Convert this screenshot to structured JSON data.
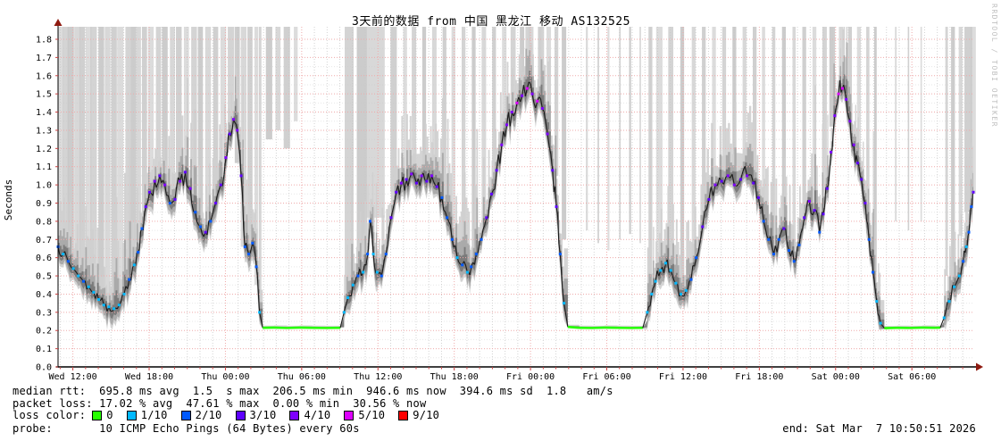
{
  "title": "3天前的数据 from 中国 黑龙江 移动 AS132525",
  "watermark": "RRDTOOL / TOBI OETIKER",
  "footer": {
    "median_line": "median rtt:  695.8 ms avg  1.5  s max  206.5 ms min  946.6 ms now  394.6 ms sd  1.8   am/s",
    "loss_line": "packet loss: 17.02 % avg  47.61 % max  0.00 % min  30.56 % now",
    "legend_label": "loss color:",
    "probe_line": "probe:       10 ICMP Echo Pings (64 Bytes) every 60s",
    "end_text": "end: Sat Mar  7 10:50:51 2026"
  },
  "chart_data": {
    "type": "line",
    "title": "3天前的数据 from 中国 黑龙江 移动 AS132525",
    "ylabel": "Seconds",
    "ylim": [
      0.0,
      1.8
    ],
    "y_tick_step": 0.1,
    "grid": true,
    "x_unit": "hours from graph start (Wed ~10:50) to end (Sat 10:50:51)",
    "x_span_hours": 72,
    "x_first_major_offset_hours": 1.1667,
    "x_major_step_hours": 6,
    "x_tick_labels": [
      "Wed 12:00",
      "Wed 18:00",
      "Thu 00:00",
      "Thu 06:00",
      "Thu 12:00",
      "Thu 18:00",
      "Fri 00:00",
      "Fri 06:00",
      "Fri 12:00",
      "Fri 18:00",
      "Sat 00:00",
      "Sat 06:00"
    ],
    "loss_legend": [
      {
        "label": "0",
        "color": "#26ff00",
        "level": 0
      },
      {
        "label": "1/10",
        "color": "#00b8ff",
        "level": 1
      },
      {
        "label": "2/10",
        "color": "#0059ff",
        "level": 2
      },
      {
        "label": "3/10",
        "color": "#5e00ff",
        "level": 3
      },
      {
        "label": "4/10",
        "color": "#7e00ff",
        "level": 4
      },
      {
        "label": "5/10",
        "color": "#dd00ff",
        "level": 5
      },
      {
        "label": "9/10",
        "color": "#ff0000",
        "level": 9
      }
    ],
    "stats": {
      "median_rtt": {
        "avg": "695.8 ms",
        "max": "1.5 s",
        "min": "206.5 ms",
        "now": "946.6 ms",
        "sd": "394.6 ms",
        "am_s": "1.8"
      },
      "packet_loss": {
        "avg": "17.02 %",
        "max": "47.61 %",
        "min": "0.00 %",
        "now": "30.56 %"
      },
      "probe": "10 ICMP Echo Pings (64 Bytes) every 60s",
      "end": "Sat Mar  7 10:50:51 2026"
    },
    "median_points": [
      [
        0,
        0.66,
        2
      ],
      [
        0.4,
        0.62,
        1
      ],
      [
        0.8,
        0.58,
        2
      ],
      [
        1.2,
        0.54,
        1
      ],
      [
        1.6,
        0.5,
        1
      ],
      [
        2.0,
        0.47,
        2
      ],
      [
        2.4,
        0.44,
        1
      ],
      [
        2.8,
        0.41,
        1
      ],
      [
        3.2,
        0.37,
        1
      ],
      [
        3.6,
        0.34,
        1
      ],
      [
        4.0,
        0.33,
        1
      ],
      [
        4.4,
        0.32,
        1
      ],
      [
        4.8,
        0.34,
        1
      ],
      [
        5.2,
        0.4,
        1
      ],
      [
        5.6,
        0.48,
        2
      ],
      [
        6.0,
        0.56,
        1
      ],
      [
        6.3,
        0.63,
        2
      ],
      [
        6.6,
        0.76,
        2
      ],
      [
        6.9,
        0.88,
        3
      ],
      [
        7.2,
        0.96,
        3
      ],
      [
        7.6,
        1.02,
        4
      ],
      [
        8.0,
        1.05,
        3
      ],
      [
        8.4,
        1.0,
        4
      ],
      [
        8.8,
        0.9,
        2
      ],
      [
        9.2,
        0.92,
        3
      ],
      [
        9.6,
        1.02,
        4
      ],
      [
        10.0,
        1.07,
        3
      ],
      [
        10.4,
        0.98,
        4
      ],
      [
        10.8,
        0.85,
        2
      ],
      [
        11.2,
        0.77,
        2
      ],
      [
        11.6,
        0.74,
        3
      ],
      [
        12.0,
        0.8,
        2
      ],
      [
        12.4,
        0.9,
        3
      ],
      [
        12.8,
        1.0,
        3
      ],
      [
        13.2,
        1.15,
        4
      ],
      [
        13.5,
        1.28,
        3
      ],
      [
        13.8,
        1.36,
        4
      ],
      [
        14.1,
        1.3,
        4
      ],
      [
        14.4,
        1.05,
        3
      ],
      [
        14.7,
        0.66,
        2
      ],
      [
        15.0,
        0.62,
        2
      ],
      [
        15.3,
        0.68,
        2
      ],
      [
        15.6,
        0.55,
        2
      ],
      [
        15.85,
        0.3,
        1
      ],
      [
        16.1,
        0.215,
        0
      ],
      [
        17.0,
        0.216,
        0
      ],
      [
        18.0,
        0.214,
        0
      ],
      [
        19.0,
        0.216,
        0
      ],
      [
        20.0,
        0.215,
        0
      ],
      [
        21.0,
        0.214,
        0
      ],
      [
        22.2,
        0.215,
        0
      ],
      [
        22.5,
        0.3,
        1
      ],
      [
        22.8,
        0.38,
        1
      ],
      [
        23.2,
        0.45,
        1
      ],
      [
        23.6,
        0.5,
        2
      ],
      [
        24.0,
        0.52,
        1
      ],
      [
        24.35,
        0.62,
        2
      ],
      [
        24.55,
        0.8,
        2
      ],
      [
        24.8,
        0.62,
        1
      ],
      [
        25.1,
        0.52,
        1
      ],
      [
        25.45,
        0.5,
        2
      ],
      [
        25.8,
        0.62,
        2
      ],
      [
        26.2,
        0.82,
        3
      ],
      [
        26.6,
        0.96,
        3
      ],
      [
        27.0,
        1.01,
        4
      ],
      [
        27.4,
        1.03,
        3
      ],
      [
        27.8,
        1.06,
        4
      ],
      [
        28.2,
        1.01,
        3
      ],
      [
        28.6,
        1.05,
        4
      ],
      [
        29.0,
        1.02,
        3
      ],
      [
        29.4,
        1.05,
        4
      ],
      [
        29.8,
        0.99,
        3
      ],
      [
        30.2,
        0.93,
        2
      ],
      [
        30.6,
        0.82,
        2
      ],
      [
        31.0,
        0.7,
        2
      ],
      [
        31.4,
        0.6,
        1
      ],
      [
        31.8,
        0.56,
        2
      ],
      [
        32.2,
        0.52,
        1
      ],
      [
        32.5,
        0.55,
        2
      ],
      [
        32.9,
        0.62,
        2
      ],
      [
        33.3,
        0.7,
        2
      ],
      [
        33.7,
        0.82,
        3
      ],
      [
        34.1,
        0.95,
        3
      ],
      [
        34.5,
        1.08,
        3
      ],
      [
        34.9,
        1.22,
        4
      ],
      [
        35.3,
        1.33,
        4
      ],
      [
        35.7,
        1.4,
        4
      ],
      [
        36.1,
        1.45,
        5
      ],
      [
        36.5,
        1.49,
        4
      ],
      [
        36.9,
        1.53,
        5
      ],
      [
        37.3,
        1.5,
        4
      ],
      [
        37.7,
        1.46,
        5
      ],
      [
        38.1,
        1.42,
        4
      ],
      [
        38.5,
        1.28,
        4
      ],
      [
        38.9,
        1.08,
        3
      ],
      [
        39.2,
        0.88,
        3
      ],
      [
        39.5,
        0.62,
        2
      ],
      [
        39.8,
        0.35,
        1
      ],
      [
        40.1,
        0.22,
        0
      ],
      [
        41.0,
        0.215,
        0
      ],
      [
        42.0,
        0.214,
        0
      ],
      [
        43.0,
        0.216,
        0
      ],
      [
        44.0,
        0.215,
        0
      ],
      [
        45.0,
        0.214,
        0
      ],
      [
        46.0,
        0.215,
        0
      ],
      [
        46.35,
        0.3,
        1
      ],
      [
        46.7,
        0.4,
        1
      ],
      [
        47.0,
        0.47,
        1
      ],
      [
        47.4,
        0.53,
        1
      ],
      [
        47.8,
        0.57,
        1
      ],
      [
        48.2,
        0.53,
        1
      ],
      [
        48.6,
        0.46,
        1
      ],
      [
        49.0,
        0.4,
        1
      ],
      [
        49.4,
        0.42,
        1
      ],
      [
        49.8,
        0.48,
        2
      ],
      [
        50.2,
        0.6,
        2
      ],
      [
        50.7,
        0.77,
        3
      ],
      [
        51.2,
        0.92,
        3
      ],
      [
        51.7,
        1.0,
        4
      ],
      [
        52.2,
        1.02,
        3
      ],
      [
        52.7,
        1.05,
        4
      ],
      [
        53.2,
        1.0,
        4
      ],
      [
        53.7,
        1.03,
        3
      ],
      [
        54.2,
        1.05,
        4
      ],
      [
        54.7,
        1.01,
        3
      ],
      [
        55.1,
        0.93,
        3
      ],
      [
        55.5,
        0.8,
        2
      ],
      [
        55.9,
        0.7,
        2
      ],
      [
        56.3,
        0.62,
        2
      ],
      [
        56.7,
        0.7,
        2
      ],
      [
        57.1,
        0.76,
        3
      ],
      [
        57.5,
        0.64,
        2
      ],
      [
        57.9,
        0.58,
        2
      ],
      [
        58.3,
        0.67,
        2
      ],
      [
        58.7,
        0.82,
        3
      ],
      [
        59.1,
        0.91,
        4
      ],
      [
        59.5,
        0.86,
        3
      ],
      [
        59.9,
        0.74,
        2
      ],
      [
        60.2,
        0.84,
        3
      ],
      [
        60.5,
        0.98,
        3
      ],
      [
        60.8,
        1.18,
        4
      ],
      [
        61.1,
        1.38,
        4
      ],
      [
        61.4,
        1.5,
        5
      ],
      [
        61.7,
        1.53,
        5
      ],
      [
        62.0,
        1.47,
        4
      ],
      [
        62.3,
        1.35,
        4
      ],
      [
        62.6,
        1.22,
        4
      ],
      [
        62.9,
        1.12,
        3
      ],
      [
        63.2,
        1.03,
        3
      ],
      [
        63.5,
        0.9,
        3
      ],
      [
        63.8,
        0.7,
        2
      ],
      [
        64.1,
        0.52,
        2
      ],
      [
        64.4,
        0.36,
        1
      ],
      [
        64.7,
        0.24,
        1
      ],
      [
        65.0,
        0.213,
        0
      ],
      [
        66.0,
        0.215,
        0
      ],
      [
        67.0,
        0.214,
        0
      ],
      [
        68.0,
        0.216,
        0
      ],
      [
        69.0,
        0.215,
        0
      ],
      [
        69.4,
        0.216,
        0
      ],
      [
        69.7,
        0.27,
        1
      ],
      [
        70.1,
        0.36,
        1
      ],
      [
        70.5,
        0.44,
        1
      ],
      [
        70.9,
        0.5,
        1
      ],
      [
        71.2,
        0.58,
        2
      ],
      [
        71.45,
        0.66,
        1
      ],
      [
        71.65,
        0.74,
        2
      ],
      [
        71.85,
        0.88,
        2
      ],
      [
        72.0,
        0.96,
        3
      ]
    ],
    "loss_bars": [
      [
        0.2,
        0.45,
        0.72
      ],
      [
        0.6,
        0.45,
        0.66
      ],
      [
        1.0,
        0.5,
        0.6
      ],
      [
        1.5,
        0.45,
        0.56
      ],
      [
        1.9,
        0.45,
        0.5
      ],
      [
        2.4,
        0.45,
        0.46
      ],
      [
        2.8,
        0.5,
        0.43
      ],
      [
        3.4,
        0.45,
        0.4
      ],
      [
        3.9,
        0.45,
        0.37
      ],
      [
        4.4,
        0.45,
        0.36
      ],
      [
        4.9,
        0.5,
        0.38
      ],
      [
        5.5,
        0.4,
        0.5
      ],
      [
        5.9,
        0.4,
        0.6
      ],
      [
        6.3,
        0.45,
        0.68
      ],
      [
        6.8,
        0.4,
        0.9
      ],
      [
        7.3,
        0.45,
        0.98
      ],
      [
        7.9,
        0.4,
        1.04
      ],
      [
        8.4,
        0.45,
        1.0
      ],
      [
        9.0,
        0.4,
        0.92
      ],
      [
        9.5,
        0.45,
        1.0
      ],
      [
        10.1,
        0.4,
        1.05
      ],
      [
        10.7,
        0.45,
        0.9
      ],
      [
        11.2,
        0.4,
        0.78
      ],
      [
        11.8,
        0.45,
        0.76
      ],
      [
        12.4,
        0.4,
        0.88
      ],
      [
        13.0,
        0.45,
        1.02
      ],
      [
        13.6,
        0.5,
        1.28
      ],
      [
        14.1,
        0.4,
        1.12
      ],
      [
        14.6,
        0.45,
        0.66
      ],
      [
        15.1,
        0.4,
        0.62
      ],
      [
        15.6,
        0.3,
        0.45
      ],
      [
        15.9,
        0.2,
        0.3
      ],
      [
        16.6,
        0.5,
        1.25
      ],
      [
        17.3,
        0.4,
        1.3
      ],
      [
        18.0,
        0.5,
        1.2
      ],
      [
        18.7,
        0.3,
        1.35
      ],
      [
        22.9,
        0.7,
        0.42
      ],
      [
        23.9,
        0.8,
        0.52
      ],
      [
        25.0,
        1.4,
        0.82
      ],
      [
        26.4,
        0.5,
        0.96
      ],
      [
        27.3,
        0.3,
        1.04
      ],
      [
        28.0,
        0.35,
        1.07
      ],
      [
        28.8,
        0.3,
        1.04
      ],
      [
        29.6,
        0.35,
        1.01
      ],
      [
        30.4,
        0.3,
        0.92
      ],
      [
        31.1,
        0.3,
        0.72
      ],
      [
        31.9,
        0.3,
        0.58
      ],
      [
        32.7,
        0.3,
        0.6
      ],
      [
        33.5,
        0.35,
        0.72
      ],
      [
        34.3,
        0.3,
        0.96
      ],
      [
        35.1,
        0.35,
        1.22
      ],
      [
        35.8,
        0.4,
        1.36
      ],
      [
        36.5,
        0.35,
        1.46
      ],
      [
        37.2,
        0.4,
        1.5
      ],
      [
        37.9,
        0.3,
        1.42
      ],
      [
        38.6,
        0.35,
        1.28
      ],
      [
        39.2,
        0.3,
        1.05
      ],
      [
        39.8,
        0.35,
        0.7
      ],
      [
        41.6,
        0.15,
        0.75
      ],
      [
        42.5,
        0.12,
        0.68
      ],
      [
        43.3,
        0.15,
        0.64
      ],
      [
        44.2,
        0.12,
        0.7
      ],
      [
        45.0,
        0.15,
        0.73
      ],
      [
        45.8,
        0.12,
        0.68
      ],
      [
        46.6,
        0.3,
        0.44
      ],
      [
        47.3,
        0.5,
        0.56
      ],
      [
        48.2,
        0.4,
        0.52
      ],
      [
        49.1,
        0.3,
        0.44
      ],
      [
        50.0,
        0.3,
        0.56
      ],
      [
        50.8,
        0.3,
        0.8
      ],
      [
        51.6,
        0.3,
        0.96
      ],
      [
        52.4,
        0.3,
        1.04
      ],
      [
        53.2,
        0.3,
        1.01
      ],
      [
        54.0,
        0.3,
        1.05
      ],
      [
        54.8,
        0.3,
        1.01
      ],
      [
        55.5,
        0.25,
        0.86
      ],
      [
        56.3,
        0.25,
        0.64
      ],
      [
        57.1,
        0.3,
        0.77
      ],
      [
        57.9,
        0.25,
        0.6
      ],
      [
        58.7,
        0.3,
        0.83
      ],
      [
        59.5,
        0.3,
        0.9
      ],
      [
        60.3,
        0.35,
        0.96
      ],
      [
        60.9,
        0.45,
        1.32
      ],
      [
        61.6,
        0.35,
        1.52
      ],
      [
        62.3,
        0.3,
        1.36
      ],
      [
        63.0,
        0.3,
        1.13
      ],
      [
        63.7,
        0.25,
        0.9
      ],
      [
        64.3,
        0.2,
        0.52
      ],
      [
        65.9,
        0.12,
        0.8
      ],
      [
        66.9,
        0.1,
        0.75
      ],
      [
        67.9,
        0.12,
        0.8
      ],
      [
        69.9,
        0.2,
        0.5
      ],
      [
        70.4,
        0.3,
        0.5
      ],
      [
        71.0,
        0.3,
        0.72
      ],
      [
        71.6,
        0.6,
        0.85
      ],
      [
        72.0,
        0.4,
        0.95
      ]
    ]
  }
}
